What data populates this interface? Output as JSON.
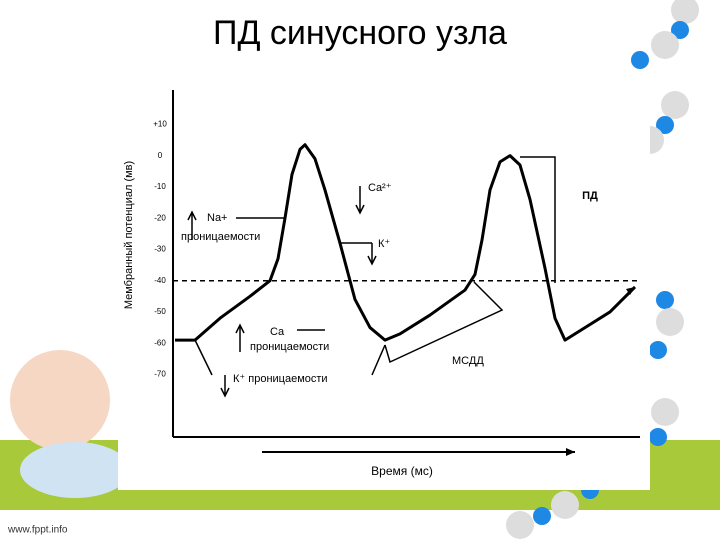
{
  "title": "ПД синусного узла",
  "footer": "www.fppt.info",
  "chart_data": {
    "type": "line",
    "y_label": "Мембранный потенциал (мв)",
    "x_label": "Время (мс)",
    "ylim": [
      -90,
      21
    ],
    "yticks": [
      {
        "value": 10,
        "label": "+10"
      },
      0,
      -10,
      -20,
      -30,
      -40,
      -50,
      -60,
      -70
    ],
    "xlim": [
      0,
      467
    ],
    "threshold": -40,
    "series": [
      {
        "color": "#000000",
        "x": [
          2,
          22,
          47,
          77,
          97,
          105,
          112,
          119,
          127,
          132,
          142,
          152,
          167,
          182,
          197,
          212,
          227,
          257,
          292,
          302,
          309,
          317,
          327,
          337,
          347,
          357,
          372,
          382,
          392,
          407,
          437,
          462
        ],
        "values": [
          -59,
          -59,
          -52,
          -45,
          -40,
          -33,
          -20,
          -6,
          2,
          3.5,
          -1,
          -11,
          -28,
          -46,
          -55,
          -59,
          -57,
          -51,
          -43,
          -38,
          -27,
          -11,
          -2,
          0,
          -3,
          -14,
          -36,
          -52,
          -59,
          -56,
          -50,
          -42
        ]
      }
    ],
    "annotations": {
      "na": "Na+",
      "na_perm": "проницаемости",
      "ca_top": "Ca²⁺",
      "k_top": "К⁺",
      "ca_low": "Ca",
      "ca_perm": "проницаемости",
      "k_low": "К⁺ проницаемости",
      "pd": "ПД",
      "msdd": "МСДД"
    }
  }
}
